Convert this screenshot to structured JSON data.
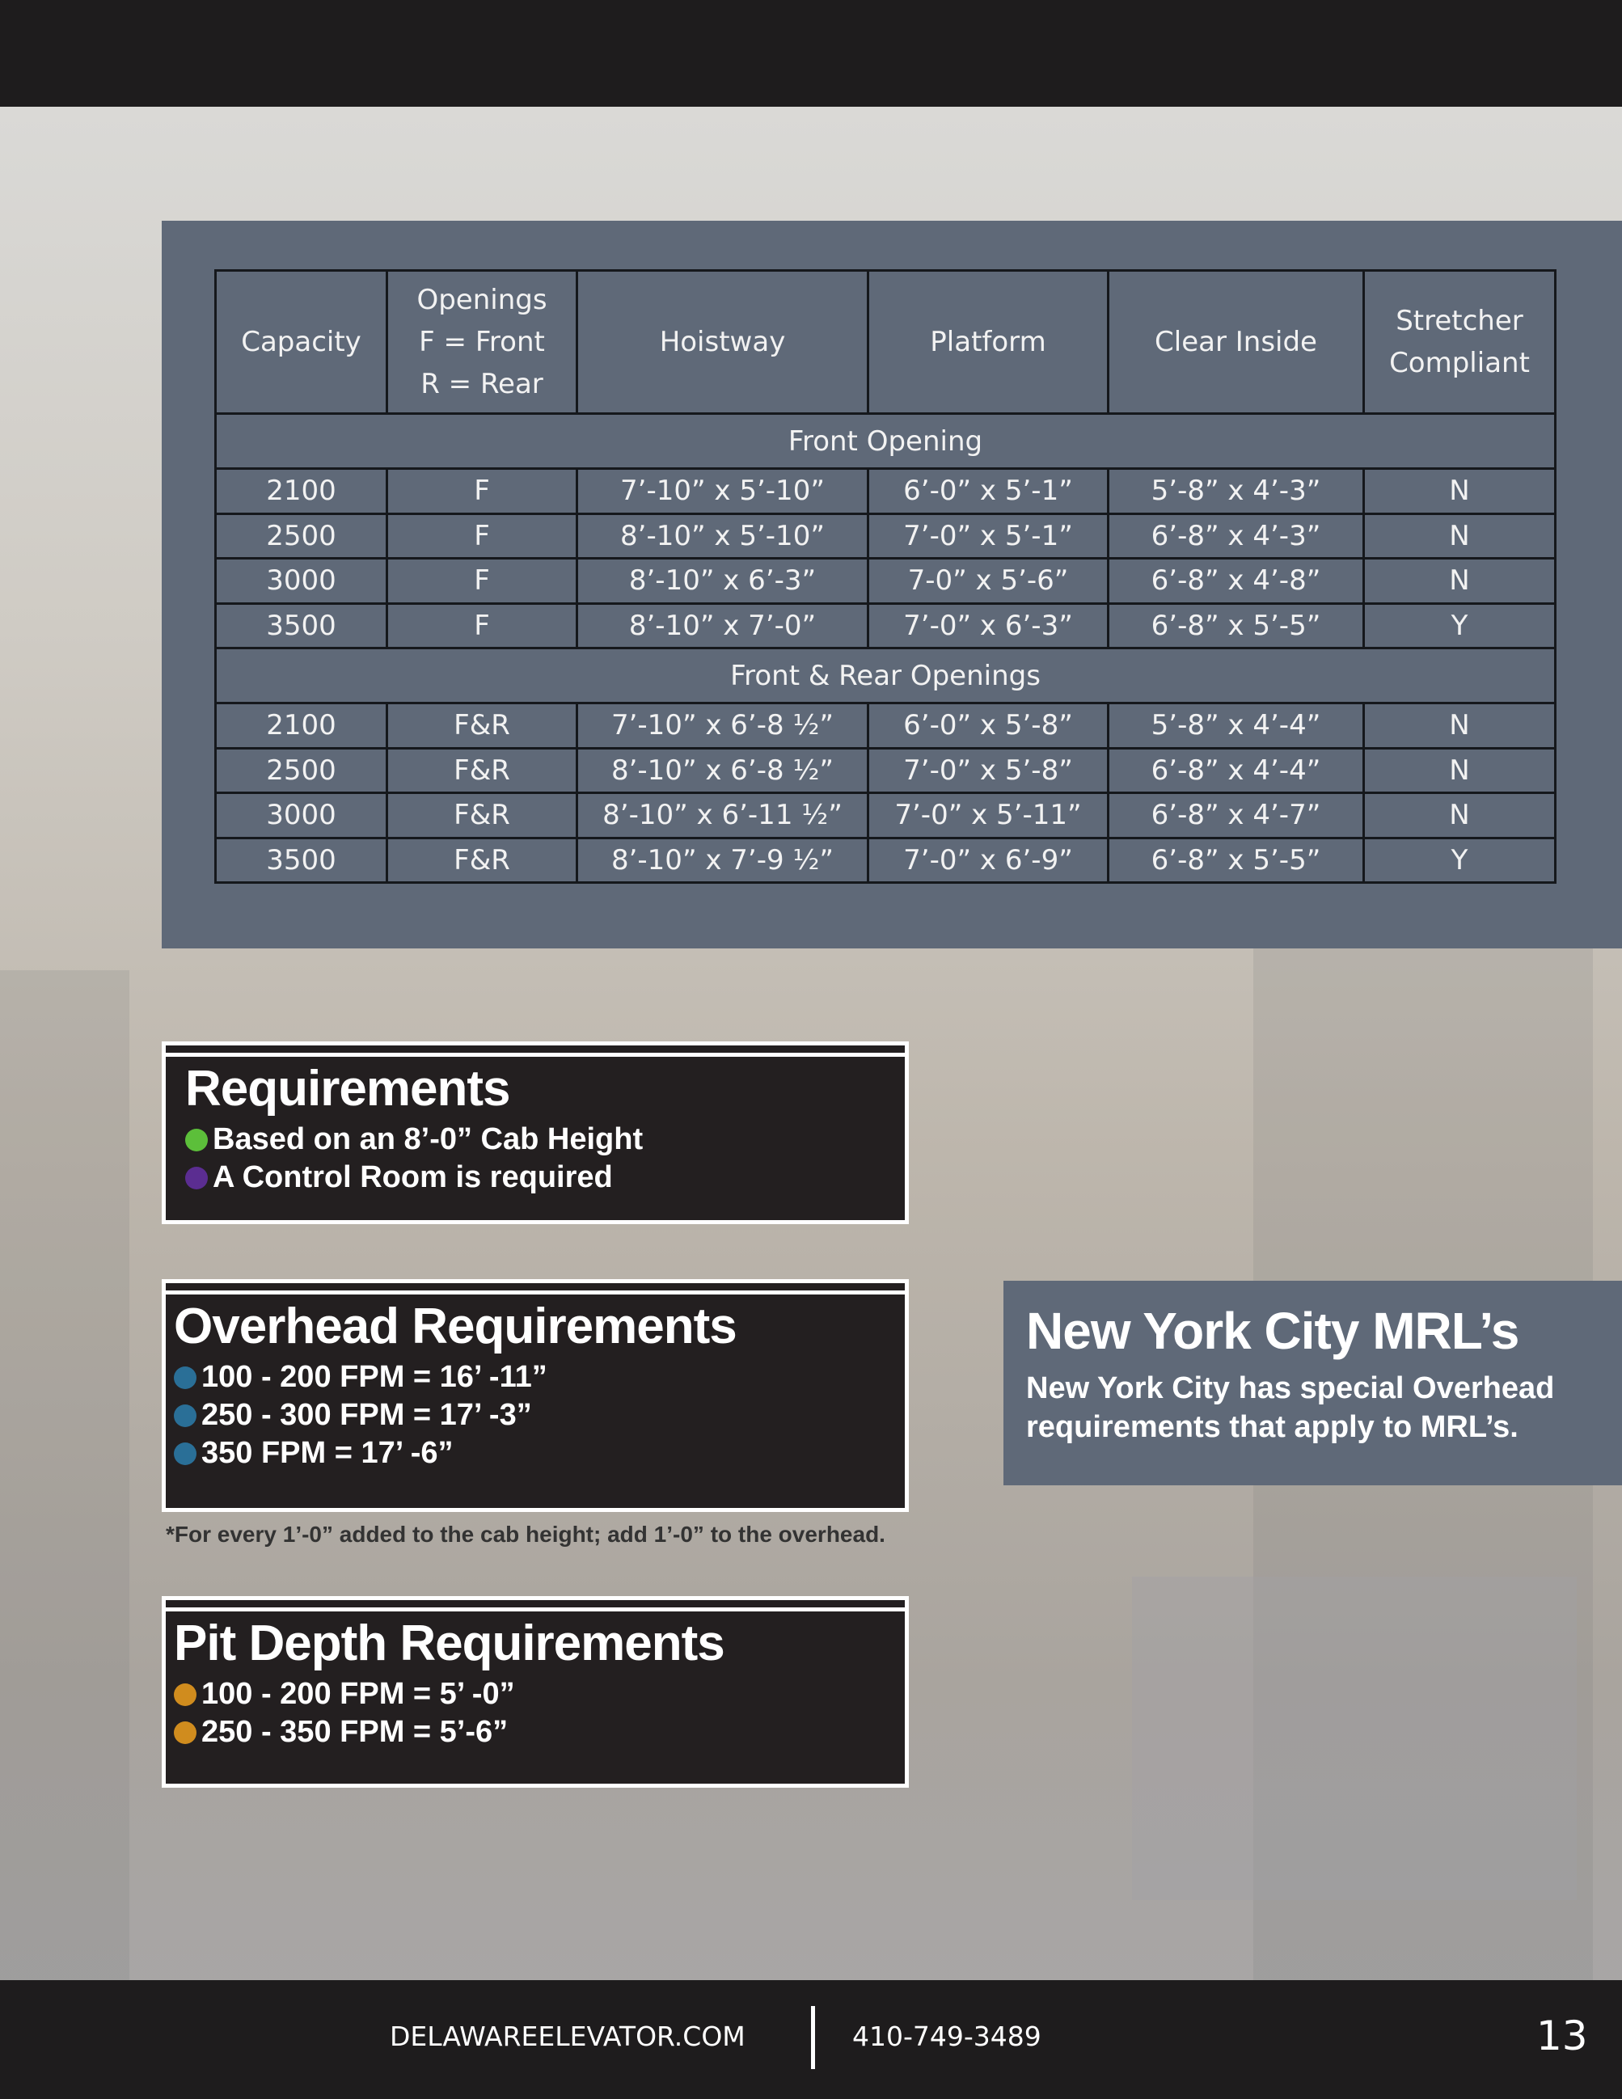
{
  "table": {
    "headers": [
      "Capacity",
      "Openings\nF = Front\nR = Rear",
      "Hoistway",
      "Platform",
      "Clear Inside",
      "Stretcher\nCompliant"
    ],
    "header_lines": {
      "openings": [
        "Openings",
        "F = Front",
        "R = Rear"
      ],
      "stretcher": [
        "Stretcher",
        "Compliant"
      ]
    },
    "sections": [
      {
        "title": "Front Opening",
        "rows": [
          [
            "2100",
            "F",
            "7’-10” x 5’-10”",
            "6’-0” x 5’-1”",
            "5’-8” x 4’-3”",
            "N"
          ],
          [
            "2500",
            "F",
            "8’-10” x 5’-10”",
            "7’-0” x 5’-1”",
            "6’-8” x 4’-3”",
            "N"
          ],
          [
            "3000",
            "F",
            "8’-10” x 6’-3”",
            "7-0” x 5’-6”",
            "6’-8” x 4’-8”",
            "N"
          ],
          [
            "3500",
            "F",
            "8’-10” x 7’-0”",
            "7’-0” x 6’-3”",
            "6’-8” x 5’-5”",
            "Y"
          ]
        ]
      },
      {
        "title": "Front & Rear Openings",
        "rows": [
          [
            "2100",
            "F&R",
            "7’-10” x 6’-8 ½”",
            "6’-0” x 5’-8”",
            "5’-8” x 4’-4”",
            "N"
          ],
          [
            "2500",
            "F&R",
            "8’-10” x 6’-8 ½”",
            "7’-0” x 5’-8”",
            "6’-8” x 4’-4”",
            "N"
          ],
          [
            "3000",
            "F&R",
            "8’-10” x 6’-11 ½”",
            "7’-0” x 5’-11”",
            "6’-8” x 4’-7”",
            "N"
          ],
          [
            "3500",
            "F&R",
            "8’-10” x 7’-9 ½”",
            "7’-0” x 6’-9”",
            "6’-8” x 5’-5”",
            "Y"
          ]
        ]
      }
    ]
  },
  "requirements": {
    "title": "Requirements",
    "items": [
      {
        "text": "Based on an 8’-0” Cab Height",
        "color": "#5cbf3a"
      },
      {
        "text": "A Control Room is required",
        "color": "#5b2d91"
      }
    ]
  },
  "overhead": {
    "title": "Overhead Requirements",
    "items": [
      {
        "text": "100 - 200 FPM = 16’ -11”",
        "color": "#2a6f97"
      },
      {
        "text": "250 - 300 FPM = 17’ -3”",
        "color": "#2a6f97"
      },
      {
        "text": "350 FPM = 17’ -6”",
        "color": "#2a6f97"
      }
    ]
  },
  "note": "*For every 1’-0” added to the cab height; add 1’-0” to the overhead.",
  "pit": {
    "title": "Pit Depth Requirements",
    "items": [
      {
        "text": "100 - 200 FPM = 5’ -0”",
        "color": "#d08c1e"
      },
      {
        "text": "250 - 350 FPM = 5’-6”",
        "color": "#d08c1e"
      }
    ]
  },
  "nyc": {
    "title": "New York City MRL’s",
    "body": "New York City has special Overhead requirements that apply to MRL’s."
  },
  "footer": {
    "website": "DELAWAREELEVATOR.COM",
    "phone": "410-749-3489",
    "page": "13"
  }
}
